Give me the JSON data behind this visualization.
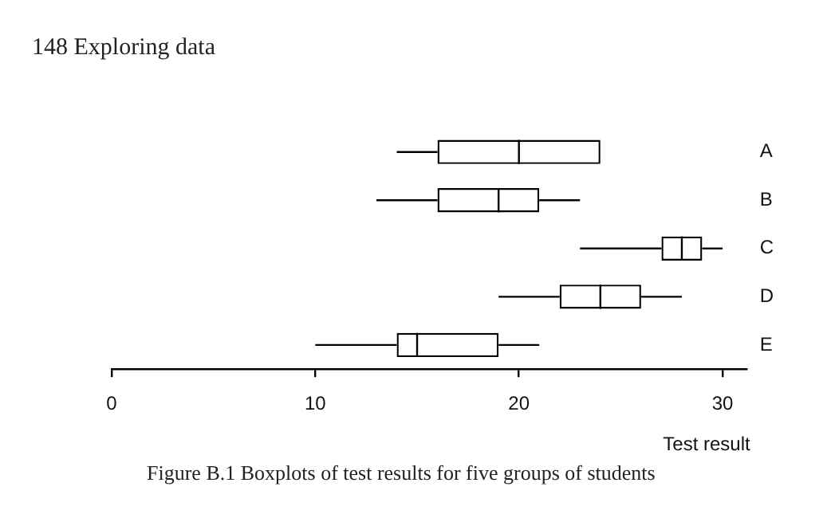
{
  "chart_data": {
    "type": "box",
    "orientation": "horizontal",
    "categories": [
      "A",
      "B",
      "C",
      "D",
      "E"
    ],
    "boxes": [
      {
        "low": 14,
        "q1": 16,
        "median": 20,
        "q3": 24,
        "high": 24
      },
      {
        "low": 13,
        "q1": 16,
        "median": 19,
        "q3": 21,
        "high": 23
      },
      {
        "low": 23,
        "q1": 27,
        "median": 28,
        "q3": 29,
        "high": 30
      },
      {
        "low": 19,
        "q1": 22,
        "median": 24,
        "q3": 26,
        "high": 28
      },
      {
        "low": 10,
        "q1": 14,
        "median": 15,
        "q3": 19,
        "high": 21
      }
    ],
    "color": "#000000",
    "xlabel": "Test result",
    "xlim": [
      0,
      31.2
    ],
    "xticks": [
      0,
      10,
      20,
      30
    ],
    "grid": false,
    "legend": false,
    "annotations": [
      "148 Exploring data",
      "Figure B.1 Boxplots of test results for five groups of students"
    ]
  }
}
